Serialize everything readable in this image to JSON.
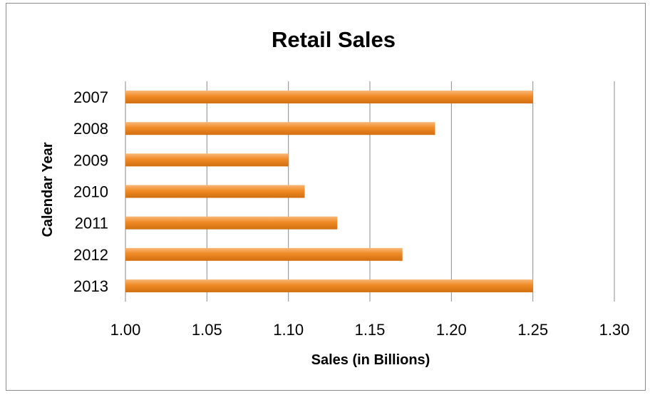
{
  "chart_data": {
    "type": "bar",
    "orientation": "horizontal",
    "title": "Retail Sales",
    "xlabel": "Sales (in Billions)",
    "ylabel": "Calendar Year",
    "categories": [
      "2007",
      "2008",
      "2009",
      "2010",
      "2011",
      "2012",
      "2013"
    ],
    "values": [
      1.25,
      1.19,
      1.1,
      1.11,
      1.13,
      1.17,
      1.25
    ],
    "xlim": [
      1.0,
      1.3
    ],
    "xticks": [
      "1.00",
      "1.05",
      "1.10",
      "1.15",
      "1.20",
      "1.25",
      "1.30"
    ],
    "grid": "vertical",
    "legend": "none",
    "bar_color": "#f08a24",
    "bar_color_light": "#f8b878",
    "bar_color_dark": "#d06e10"
  }
}
